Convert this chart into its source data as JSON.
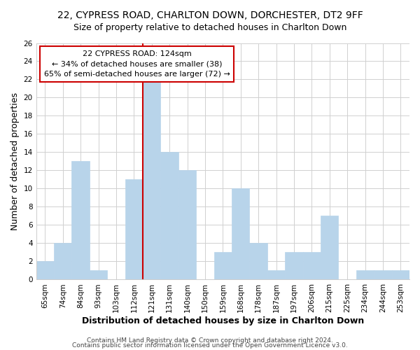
{
  "title1": "22, CYPRESS ROAD, CHARLTON DOWN, DORCHESTER, DT2 9FF",
  "title2": "Size of property relative to detached houses in Charlton Down",
  "xlabel": "Distribution of detached houses by size in Charlton Down",
  "ylabel": "Number of detached properties",
  "bins": [
    "65sqm",
    "74sqm",
    "84sqm",
    "93sqm",
    "103sqm",
    "112sqm",
    "121sqm",
    "131sqm",
    "140sqm",
    "150sqm",
    "159sqm",
    "168sqm",
    "178sqm",
    "187sqm",
    "197sqm",
    "206sqm",
    "215sqm",
    "225sqm",
    "234sqm",
    "244sqm",
    "253sqm"
  ],
  "counts": [
    2,
    4,
    13,
    1,
    0,
    11,
    22,
    14,
    12,
    0,
    3,
    10,
    4,
    1,
    3,
    3,
    7,
    0,
    1,
    1,
    1
  ],
  "bar_color": "#b8d4ea",
  "bar_edge_color": "#b8d4ea",
  "highlight_line_color": "#cc0000",
  "annotation_line1": "22 CYPRESS ROAD: 124sqm",
  "annotation_line2": "← 34% of detached houses are smaller (38)",
  "annotation_line3": "65% of semi-detached houses are larger (72) →",
  "annotation_box_color": "#ffffff",
  "annotation_box_edge_color": "#cc0000",
  "ylim": [
    0,
    26
  ],
  "yticks": [
    0,
    2,
    4,
    6,
    8,
    10,
    12,
    14,
    16,
    18,
    20,
    22,
    24,
    26
  ],
  "grid_color": "#d0d0d0",
  "bg_color": "#ffffff",
  "footer1": "Contains HM Land Registry data © Crown copyright and database right 2024.",
  "footer2": "Contains public sector information licensed under the Open Government Licence v3.0.",
  "title_fontsize": 10,
  "subtitle_fontsize": 9,
  "axis_label_fontsize": 9,
  "tick_fontsize": 7.5,
  "annotation_fontsize": 8,
  "footer_fontsize": 6.5
}
